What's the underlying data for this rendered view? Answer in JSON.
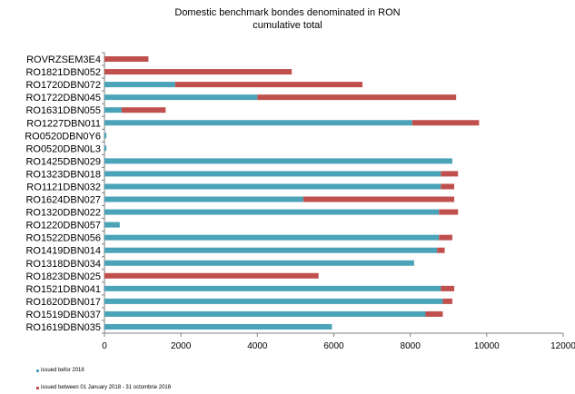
{
  "chart_data": {
    "type": "bar",
    "orientation": "horizontal",
    "stacked": true,
    "title": "Domestic benchmark bondes denominated in RON",
    "subtitle": "cumulative total",
    "categories": [
      "ROVRZSEM3E4",
      "RO1821DBN052",
      "RO1720DBN072",
      "RO1722DBN045",
      "RO1631DBN055",
      "RO1227DBN011",
      "RO0520DBN0Y6",
      "RO0520DBN0L3",
      "RO1425DBN029",
      "RO1323DBN018",
      "RO1121DBN032",
      "RO1624DBN027",
      "RO1320DBN022",
      "RO1220DBN057",
      "RO1522DBN056",
      "RO1419DBN014",
      "RO1318DBN034",
      "RO1823DBN025",
      "RO1521DBN041",
      "RO1620DBN017",
      "RO1519DBN037",
      "RO1619DBN035"
    ],
    "series": [
      {
        "name": "issued befor 2018",
        "color": "#4aa3b8",
        "values": [
          0,
          0,
          1850,
          4000,
          450,
          8050,
          50,
          50,
          9100,
          8800,
          8800,
          5200,
          8750,
          400,
          8750,
          8700,
          8100,
          0,
          8800,
          8850,
          8400,
          5950
        ]
      },
      {
        "name": "issued between 01 January 2018 - 31 octombrie 2018",
        "color": "#c0504d",
        "values": [
          1150,
          4900,
          4900,
          5200,
          1150,
          1750,
          0,
          0,
          0,
          450,
          350,
          3950,
          500,
          0,
          350,
          200,
          0,
          5600,
          350,
          250,
          450,
          0
        ]
      }
    ],
    "xlim": [
      0,
      12000
    ],
    "xticks": [
      "0",
      "2000",
      "4000",
      "6000",
      "8000",
      "10000",
      "12000"
    ],
    "grid": false,
    "legend_position": "bottom-left"
  }
}
